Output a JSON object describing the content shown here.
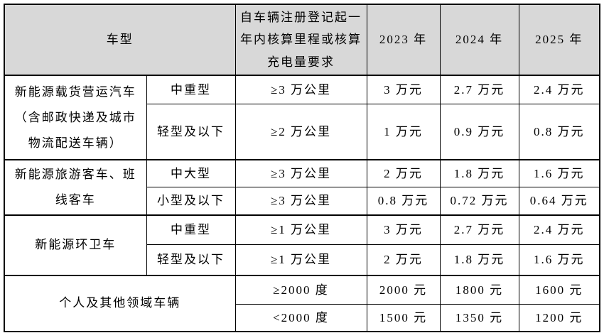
{
  "table": {
    "header_bg": "#d8d8d8",
    "border_color": "#000000",
    "header": {
      "vehicle_type": "车型",
      "requirement": "自车辆注册登记起一年内核算里程或核算充电量要求",
      "years": [
        "2023 年",
        "2024 年",
        "2025 年"
      ]
    },
    "groups": [
      {
        "label": "新能源载货营运汽车（含邮政快递及城市物流配送车辆）",
        "rows": [
          {
            "subtype": "中重型",
            "requirement": "≥3 万公里",
            "y2023": "3 万元",
            "y2024": "2.7 万元",
            "y2025": "2.4 万元"
          },
          {
            "subtype": "轻型及以下",
            "requirement": "≥2 万公里",
            "y2023": "1 万元",
            "y2024": "0.9 万元",
            "y2025": "0.8 万元"
          }
        ]
      },
      {
        "label": "新能源旅游客车、班线客车",
        "rows": [
          {
            "subtype": "中大型",
            "requirement": "≥3 万公里",
            "y2023": "2 万元",
            "y2024": "1.8 万元",
            "y2025": "1.6 万元"
          },
          {
            "subtype": "小型及以下",
            "requirement": "≥3 万公里",
            "y2023": "0.8 万元",
            "y2024": "0.72 万元",
            "y2025": "0.64 万元"
          }
        ]
      },
      {
        "label": "新能源环卫车",
        "rows": [
          {
            "subtype": "中重型",
            "requirement": "≥1 万公里",
            "y2023": "3 万元",
            "y2024": "2.7 万元",
            "y2025": "2.4 万元"
          },
          {
            "subtype": "轻型及以下",
            "requirement": "≥1 万公里",
            "y2023": "2 万元",
            "y2024": "1.8 万元",
            "y2025": "1.6 万元"
          }
        ]
      },
      {
        "label": "个人及其他领域车辆",
        "rows": [
          {
            "requirement": "≥2000 度",
            "y2023": "2000 元",
            "y2024": "1800 元",
            "y2025": "1600 元"
          },
          {
            "requirement": "<2000 度",
            "y2023": "1500 元",
            "y2024": "1350 元",
            "y2025": "1200 元"
          }
        ]
      }
    ]
  }
}
